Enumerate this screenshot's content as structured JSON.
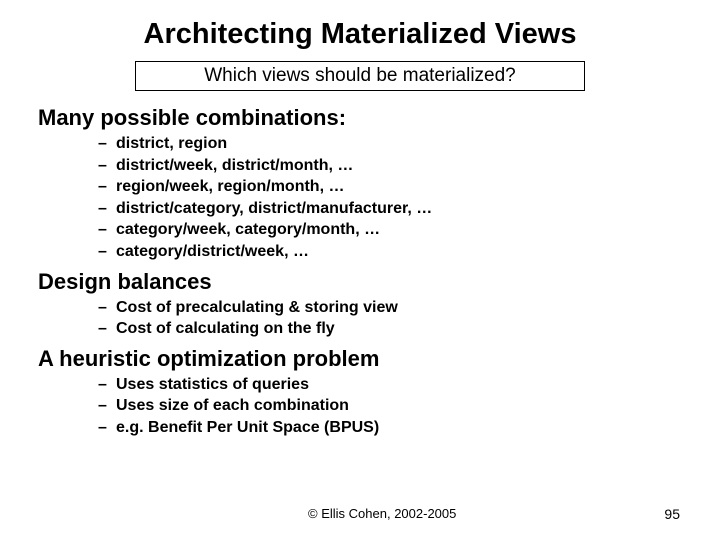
{
  "title": "Architecting Materialized Views",
  "subtitle": "Which views should be materialized?",
  "sections": [
    {
      "heading": "Many possible combinations:",
      "items": [
        "district, region",
        "district/week, district/month, …",
        "region/week, region/month, …",
        "district/category, district/manufacturer, …",
        "category/week, category/month, …",
        "category/district/week, …"
      ]
    },
    {
      "heading": "Design balances",
      "items": [
        "Cost of precalculating & storing view",
        "Cost of calculating on the fly"
      ]
    },
    {
      "heading": "A heuristic optimization problem",
      "items": [
        "Uses statistics of queries",
        "Uses size of each combination",
        "e.g. Benefit Per Unit Space (BPUS)"
      ]
    }
  ],
  "footer": {
    "copyright": "© Ellis Cohen, 2002-2005",
    "page": "95"
  },
  "style": {
    "background": "#ffffff",
    "text_color": "#000000",
    "title_fontsize": 29,
    "subtitle_fontsize": 19,
    "heading_fontsize": 22,
    "bullet_fontsize": 16,
    "footer_fontsize": 13,
    "font_family": "Verdana, Arial, sans-serif",
    "border_color": "#000000"
  }
}
